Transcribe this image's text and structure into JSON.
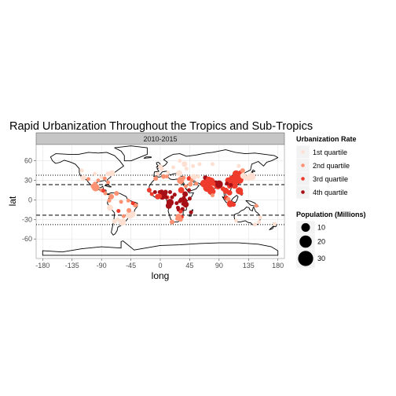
{
  "chart_data": {
    "type": "scatter",
    "title": "Rapid Urbanization Throughout the Tropics and Sub-Tropics",
    "facet_label": "2010-2015",
    "xlabel": "long",
    "ylabel": "lat",
    "xlim": [
      -190,
      190
    ],
    "ylim": [
      -90,
      85
    ],
    "x_ticks": [
      -180,
      -135,
      -90,
      -45,
      0,
      45,
      90,
      135,
      180
    ],
    "y_ticks": [
      60,
      30,
      0,
      -30,
      -60
    ],
    "reference_lines": [
      {
        "lat": 23.4,
        "style": "dashed"
      },
      {
        "lat": -23.4,
        "style": "dashed"
      },
      {
        "lat": 38,
        "style": "dotted"
      },
      {
        "lat": -38,
        "style": "dotted"
      }
    ],
    "color_legend": {
      "title": "Urbanization Rate",
      "entries": [
        {
          "label": "1st quartile",
          "color": "#fee0d2"
        },
        {
          "label": "2nd quartile",
          "color": "#fc9272"
        },
        {
          "label": "3rd quartile",
          "color": "#ef3b2c"
        },
        {
          "label": "4th quartile",
          "color": "#a50f15"
        }
      ]
    },
    "size_legend": {
      "title": "Population (Millions)",
      "entries": [
        {
          "label": "10",
          "value": 10
        },
        {
          "label": "20",
          "value": 20
        },
        {
          "label": "30",
          "value": 30
        }
      ]
    },
    "points": [
      {
        "long": -100,
        "lat": 40,
        "q": 1,
        "pop": 2
      },
      {
        "long": -90,
        "lat": 35,
        "q": 1,
        "pop": 2
      },
      {
        "long": -80,
        "lat": 40,
        "q": 1,
        "pop": 3
      },
      {
        "long": -118,
        "lat": 34,
        "q": 1,
        "pop": 4
      },
      {
        "long": -74,
        "lat": 41,
        "q": 1,
        "pop": 5
      },
      {
        "long": -95,
        "lat": 30,
        "q": 2,
        "pop": 2
      },
      {
        "long": -120,
        "lat": 45,
        "q": 1,
        "pop": 2
      },
      {
        "long": -85,
        "lat": 33,
        "q": 2,
        "pop": 2
      },
      {
        "long": -110,
        "lat": 32,
        "q": 2,
        "pop": 2
      },
      {
        "long": -80,
        "lat": 27,
        "q": 2,
        "pop": 2
      },
      {
        "long": -99,
        "lat": 19,
        "q": 2,
        "pop": 8
      },
      {
        "long": -103,
        "lat": 21,
        "q": 2,
        "pop": 3
      },
      {
        "long": -90,
        "lat": 15,
        "q": 2,
        "pop": 2
      },
      {
        "long": -87,
        "lat": 14,
        "q": 3,
        "pop": 2
      },
      {
        "long": -84,
        "lat": 10,
        "q": 2,
        "pop": 2
      },
      {
        "long": -100,
        "lat": 25,
        "q": 2,
        "pop": 2
      },
      {
        "long": -75,
        "lat": 5,
        "q": 2,
        "pop": 4
      },
      {
        "long": -67,
        "lat": 10,
        "q": 2,
        "pop": 3
      },
      {
        "long": -78,
        "lat": -1,
        "q": 2,
        "pop": 2
      },
      {
        "long": -77,
        "lat": -12,
        "q": 1,
        "pop": 5
      },
      {
        "long": -47,
        "lat": -23,
        "q": 1,
        "pop": 8
      },
      {
        "long": -43,
        "lat": -22,
        "q": 1,
        "pop": 6
      },
      {
        "long": -58,
        "lat": -34,
        "q": 1,
        "pop": 7
      },
      {
        "long": -70,
        "lat": -33,
        "q": 1,
        "pop": 3
      },
      {
        "long": -48,
        "lat": -16,
        "q": 2,
        "pop": 3
      },
      {
        "long": -38,
        "lat": -8,
        "q": 2,
        "pop": 3
      },
      {
        "long": -60,
        "lat": -3,
        "q": 2,
        "pop": 2
      },
      {
        "long": -49,
        "lat": -1,
        "q": 2,
        "pop": 2
      },
      {
        "long": -64,
        "lat": -17,
        "q": 3,
        "pop": 2
      },
      {
        "long": -56,
        "lat": -25,
        "q": 2,
        "pop": 2
      },
      {
        "long": -65,
        "lat": -30,
        "q": 1,
        "pop": 2
      },
      {
        "long": -42,
        "lat": -5,
        "q": 3,
        "pop": 2
      },
      {
        "long": 0,
        "lat": 51,
        "q": 1,
        "pop": 3
      },
      {
        "long": 2,
        "lat": 48,
        "q": 1,
        "pop": 3
      },
      {
        "long": 12,
        "lat": 42,
        "q": 1,
        "pop": 2
      },
      {
        "long": 37,
        "lat": 55,
        "q": 1,
        "pop": 4
      },
      {
        "long": 30,
        "lat": 60,
        "q": 1,
        "pop": 2
      },
      {
        "long": 60,
        "lat": 55,
        "q": 1,
        "pop": 2
      },
      {
        "long": 80,
        "lat": 55,
        "q": 1,
        "pop": 2
      },
      {
        "long": 40,
        "lat": 48,
        "q": 1,
        "pop": 2
      },
      {
        "long": 50,
        "lat": 52,
        "q": 1,
        "pop": 2
      },
      {
        "long": 120,
        "lat": 52,
        "q": 1,
        "pop": 2
      },
      {
        "long": -4,
        "lat": 40,
        "q": 1,
        "pop": 2
      },
      {
        "long": 20,
        "lat": 50,
        "q": 1,
        "pop": 2
      },
      {
        "long": 29,
        "lat": 41,
        "q": 1,
        "pop": 5
      },
      {
        "long": 5,
        "lat": 36,
        "q": 2,
        "pop": 3
      },
      {
        "long": -7,
        "lat": 33,
        "q": 2,
        "pop": 3
      },
      {
        "long": 10,
        "lat": 36,
        "q": 2,
        "pop": 2
      },
      {
        "long": 31,
        "lat": 30,
        "q": 2,
        "pop": 7
      },
      {
        "long": 44,
        "lat": 33,
        "q": 3,
        "pop": 3
      },
      {
        "long": 46,
        "lat": 24,
        "q": 2,
        "pop": 3
      },
      {
        "long": 51,
        "lat": 35,
        "q": 1,
        "pop": 5
      },
      {
        "long": 55,
        "lat": 25,
        "q": 2,
        "pop": 2
      },
      {
        "long": 36,
        "lat": 34,
        "q": 2,
        "pop": 2
      },
      {
        "long": 39,
        "lat": 21,
        "q": 2,
        "pop": 2
      },
      {
        "long": 58,
        "lat": 36,
        "q": 1,
        "pop": 2
      },
      {
        "long": 69,
        "lat": 34,
        "q": 4,
        "pop": 3
      },
      {
        "long": 67,
        "lat": 25,
        "q": 3,
        "pop": 8
      },
      {
        "long": 74,
        "lat": 31,
        "q": 3,
        "pop": 5
      },
      {
        "long": 77,
        "lat": 28,
        "q": 3,
        "pop": 10
      },
      {
        "long": 72,
        "lat": 19,
        "q": 3,
        "pop": 10
      },
      {
        "long": 88,
        "lat": 22,
        "q": 3,
        "pop": 8
      },
      {
        "long": 80,
        "lat": 13,
        "q": 3,
        "pop": 5
      },
      {
        "long": 77,
        "lat": 13,
        "q": 3,
        "pop": 5
      },
      {
        "long": 78,
        "lat": 17,
        "q": 3,
        "pop": 4
      },
      {
        "long": 90,
        "lat": 24,
        "q": 4,
        "pop": 8
      },
      {
        "long": 85,
        "lat": 27,
        "q": 4,
        "pop": 2
      },
      {
        "long": 81,
        "lat": 25,
        "q": 3,
        "pop": 3
      },
      {
        "long": 73,
        "lat": 23,
        "q": 3,
        "pop": 3
      },
      {
        "long": 80,
        "lat": 7,
        "q": 2,
        "pop": 2
      },
      {
        "long": 96,
        "lat": 17,
        "q": 3,
        "pop": 3
      },
      {
        "long": 100,
        "lat": 14,
        "q": 3,
        "pop": 5
      },
      {
        "long": 106,
        "lat": 11,
        "q": 3,
        "pop": 4
      },
      {
        "long": 106,
        "lat": 21,
        "q": 3,
        "pop": 3
      },
      {
        "long": 101,
        "lat": 3,
        "q": 3,
        "pop": 3
      },
      {
        "long": 104,
        "lat": 1,
        "q": 2,
        "pop": 3
      },
      {
        "long": 107,
        "lat": -6,
        "q": 3,
        "pop": 6
      },
      {
        "long": 112,
        "lat": -7,
        "q": 3,
        "pop": 3
      },
      {
        "long": 121,
        "lat": 14,
        "q": 3,
        "pop": 7
      },
      {
        "long": 124,
        "lat": 10,
        "q": 3,
        "pop": 2
      },
      {
        "long": 116,
        "lat": 40,
        "q": 3,
        "pop": 7
      },
      {
        "long": 121,
        "lat": 31,
        "q": 3,
        "pop": 9
      },
      {
        "long": 113,
        "lat": 23,
        "q": 3,
        "pop": 7
      },
      {
        "long": 114,
        "lat": 22,
        "q": 3,
        "pop": 5
      },
      {
        "long": 104,
        "lat": 30,
        "q": 3,
        "pop": 5
      },
      {
        "long": 106,
        "lat": 29,
        "q": 3,
        "pop": 6
      },
      {
        "long": 114,
        "lat": 30,
        "q": 3,
        "pop": 4
      },
      {
        "long": 117,
        "lat": 39,
        "q": 3,
        "pop": 4
      },
      {
        "long": 118,
        "lat": 32,
        "q": 3,
        "pop": 4
      },
      {
        "long": 109,
        "lat": 34,
        "q": 3,
        "pop": 3
      },
      {
        "long": 123,
        "lat": 42,
        "q": 3,
        "pop": 3
      },
      {
        "long": 126,
        "lat": 45,
        "q": 2,
        "pop": 3
      },
      {
        "long": 113,
        "lat": 35,
        "q": 3,
        "pop": 3
      },
      {
        "long": 120,
        "lat": 36,
        "q": 3,
        "pop": 3
      },
      {
        "long": 108,
        "lat": 23,
        "q": 4,
        "pop": 2
      },
      {
        "long": 102,
        "lat": 25,
        "q": 4,
        "pop": 2
      },
      {
        "long": 127,
        "lat": 37,
        "q": 1,
        "pop": 5
      },
      {
        "long": 140,
        "lat": 36,
        "q": 1,
        "pop": 8
      },
      {
        "long": 135,
        "lat": 34,
        "q": 1,
        "pop": 5
      },
      {
        "long": 131,
        "lat": 33,
        "q": 1,
        "pop": 2
      },
      {
        "long": 151,
        "lat": -34,
        "q": 1,
        "pop": 2
      },
      {
        "long": 145,
        "lat": -38,
        "q": 1,
        "pop": 2
      },
      {
        "long": 153,
        "lat": -27,
        "q": 1,
        "pop": 2
      },
      {
        "long": 116,
        "lat": -32,
        "q": 1,
        "pop": 2
      },
      {
        "long": 175,
        "lat": -37,
        "q": 1,
        "pop": 2
      },
      {
        "long": 147,
        "lat": -9,
        "q": 2,
        "pop": 2
      },
      {
        "long": 3,
        "lat": 6,
        "q": 4,
        "pop": 7
      },
      {
        "long": 7,
        "lat": 9,
        "q": 4,
        "pop": 3
      },
      {
        "long": 8,
        "lat": 12,
        "q": 4,
        "pop": 3
      },
      {
        "long": -4,
        "lat": 5,
        "q": 3,
        "pop": 4
      },
      {
        "long": -17,
        "lat": 15,
        "q": 3,
        "pop": 3
      },
      {
        "long": -8,
        "lat": 12,
        "q": 4,
        "pop": 2
      },
      {
        "long": -1,
        "lat": 12,
        "q": 4,
        "pop": 2
      },
      {
        "long": -13,
        "lat": 9,
        "q": 3,
        "pop": 2
      },
      {
        "long": 2,
        "lat": 13,
        "q": 4,
        "pop": 2
      },
      {
        "long": -1,
        "lat": 6,
        "q": 3,
        "pop": 3
      },
      {
        "long": 15,
        "lat": 12,
        "q": 4,
        "pop": 2
      },
      {
        "long": 11,
        "lat": 4,
        "q": 3,
        "pop": 2
      },
      {
        "long": 9,
        "lat": 4,
        "q": 4,
        "pop": 2
      },
      {
        "long": 18,
        "lat": 4,
        "q": 4,
        "pop": 2
      },
      {
        "long": 15,
        "lat": -4,
        "q": 4,
        "pop": 7
      },
      {
        "long": 13,
        "lat": -9,
        "q": 4,
        "pop": 5
      },
      {
        "long": 25,
        "lat": -5,
        "q": 4,
        "pop": 2
      },
      {
        "long": 27,
        "lat": -12,
        "q": 4,
        "pop": 2
      },
      {
        "long": 32,
        "lat": 15,
        "q": 3,
        "pop": 5
      },
      {
        "long": 38,
        "lat": 9,
        "q": 4,
        "pop": 4
      },
      {
        "long": 45,
        "lat": 2,
        "q": 4,
        "pop": 2
      },
      {
        "long": 37,
        "lat": -1,
        "q": 4,
        "pop": 4
      },
      {
        "long": 32,
        "lat": 0,
        "q": 4,
        "pop": 3
      },
      {
        "long": 30,
        "lat": -2,
        "q": 4,
        "pop": 2
      },
      {
        "long": 39,
        "lat": -7,
        "q": 4,
        "pop": 5
      },
      {
        "long": 35,
        "lat": -6,
        "q": 4,
        "pop": 2
      },
      {
        "long": 34,
        "lat": -14,
        "q": 4,
        "pop": 2
      },
      {
        "long": 28,
        "lat": -15,
        "q": 4,
        "pop": 2
      },
      {
        "long": 31,
        "lat": -18,
        "q": 3,
        "pop": 2
      },
      {
        "long": 33,
        "lat": -26,
        "q": 3,
        "pop": 2
      },
      {
        "long": 47,
        "lat": -19,
        "q": 4,
        "pop": 2
      },
      {
        "long": 28,
        "lat": -26,
        "q": 2,
        "pop": 5
      },
      {
        "long": 18,
        "lat": -34,
        "q": 2,
        "pop": 3
      },
      {
        "long": 31,
        "lat": -30,
        "q": 2,
        "pop": 3
      },
      {
        "long": 26,
        "lat": -29,
        "q": 2,
        "pop": 2
      },
      {
        "long": 36,
        "lat": 3,
        "q": 4,
        "pop": 2
      },
      {
        "long": 22,
        "lat": 8,
        "q": 4,
        "pop": 2
      },
      {
        "long": 44,
        "lat": 15,
        "q": 4,
        "pop": 2
      },
      {
        "long": 48,
        "lat": 30,
        "q": 2,
        "pop": 2
      }
    ]
  }
}
